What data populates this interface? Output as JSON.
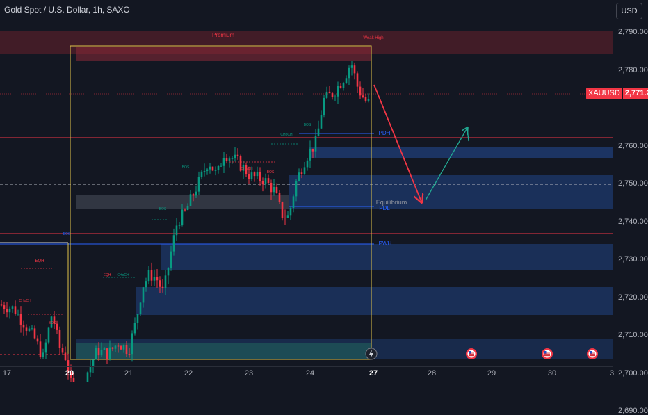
{
  "header": {
    "title": "Gold Spot / U.S. Dollar, 1h, SAXO",
    "currency_button": "USD"
  },
  "price_tag": {
    "symbol": "XAUUSD",
    "value": "2,771.20"
  },
  "y_axis": [
    {
      "label": "2,790.00",
      "value": 2790
    },
    {
      "label": "2,780.00",
      "value": 2780
    },
    {
      "label": "2,760.00",
      "value": 2760
    },
    {
      "label": "2,750.00",
      "value": 2750
    },
    {
      "label": "2,740.00",
      "value": 2740
    },
    {
      "label": "2,730.00",
      "value": 2730
    },
    {
      "label": "2,720.00",
      "value": 2720
    },
    {
      "label": "2,710.00",
      "value": 2710
    },
    {
      "label": "2,700.00",
      "value": 2700
    },
    {
      "label": "2,690.00",
      "value": 2690
    }
  ],
  "x_axis": [
    {
      "label": "17",
      "bold": false
    },
    {
      "label": "20",
      "bold": true
    },
    {
      "label": "21",
      "bold": false
    },
    {
      "label": "22",
      "bold": false
    },
    {
      "label": "23",
      "bold": false
    },
    {
      "label": "24",
      "bold": false
    },
    {
      "label": "27",
      "bold": true
    },
    {
      "label": "28",
      "bold": false
    },
    {
      "label": "29",
      "bold": false
    },
    {
      "label": "30",
      "bold": false
    },
    {
      "label": "3",
      "bold": false
    }
  ],
  "annotations": {
    "premium": "Premium",
    "weak_high": "Weak High",
    "pdh": "PDH",
    "pdl": "PDL",
    "pwh": "PWH",
    "equilibrium": "Equilibrium",
    "eqh": "EQH",
    "structure": [
      {
        "text": "BOS",
        "color": "#2962ff"
      },
      {
        "text": "CHoCH",
        "color": "#f23645"
      },
      {
        "text": "BOS",
        "color": "#f23645"
      },
      {
        "text": "EQH",
        "color": "#f23645"
      },
      {
        "text": "CHoCH",
        "color": "#089981"
      },
      {
        "text": "BOS",
        "color": "#089981"
      },
      {
        "text": "BOS",
        "color": "#089981"
      },
      {
        "text": "CHoCH",
        "color": "#f23645"
      },
      {
        "text": "BOS",
        "color": "#f23645"
      },
      {
        "text": "CHoCH",
        "color": "#089981"
      },
      {
        "text": "BOS",
        "color": "#089981"
      }
    ]
  },
  "colors": {
    "background": "#131722",
    "bull": "#089981",
    "bear": "#f23645",
    "zone_blue": "#1e3a6e",
    "premium_zone": "#5c1e2a",
    "range_box": "#e0c34a",
    "forecast_down": "#f23645",
    "forecast_up": "#22ab94"
  },
  "chart_data": {
    "type": "candlestick",
    "symbol": "XAUUSD",
    "last_price": 2771.2,
    "ylim": [
      2688,
      2795
    ],
    "x_categories": [
      "17",
      "20",
      "21",
      "22",
      "23",
      "24",
      "27",
      "28",
      "29",
      "30",
      "3"
    ]
  }
}
